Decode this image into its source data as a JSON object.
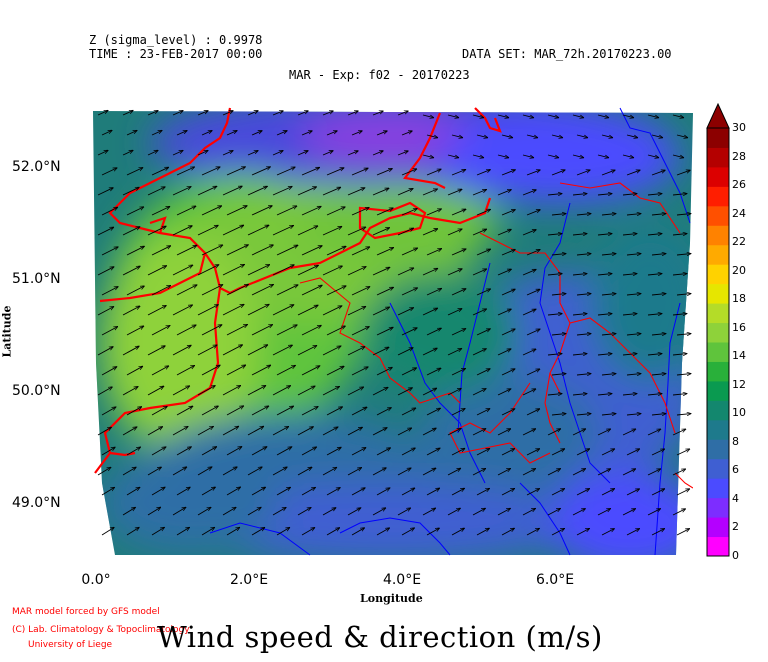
{
  "header": {
    "z_level": "Z (sigma_level) : 0.9978",
    "time": "TIME : 23-FEB-2017 00:00",
    "dataset": "DATA SET: MAR_72h.20170223.00",
    "subtitle": "MAR - Exp: f02 - 20170223"
  },
  "axes": {
    "xlabel": "Longitude",
    "ylabel": "Latitude",
    "lon_ticks": [
      "0.0°",
      "2.0°E",
      "4.0°E",
      "6.0°E"
    ],
    "lat_ticks": [
      "52.0°N",
      "51.0°N",
      "50.0°N",
      "49.0°N"
    ]
  },
  "colorbar": {
    "ticks": [
      "30",
      "28",
      "26",
      "24",
      "22",
      "20",
      "18",
      "16",
      "14",
      "12",
      "10",
      "8",
      "6",
      "4",
      "2",
      "0"
    ],
    "colors": [
      "#ff00ff",
      "#b400ff",
      "#7d2dff",
      "#4b4bff",
      "#3f5fd2",
      "#2f6ea6",
      "#1e7a8c",
      "#13876e",
      "#0a9a50",
      "#29b03a",
      "#5fc43c",
      "#8ed23a",
      "#b4dc28",
      "#e6e600",
      "#ffd200",
      "#ffaa00",
      "#ff8200",
      "#ff5000",
      "#ff1e00",
      "#dc0000",
      "#b40000",
      "#8c0000"
    ],
    "overflow_color": "#8c0000"
  },
  "credits": {
    "line1": "MAR model forced by GFS model",
    "line2": "(C) Lab. Climatology & Topoclimatology",
    "line3": "University of Liege"
  },
  "title": "Wind speed & direction (m/s)",
  "legend_colors": {
    "coast": "#ff0000",
    "rivers": "#0000ff",
    "arrows": "#000000"
  }
}
